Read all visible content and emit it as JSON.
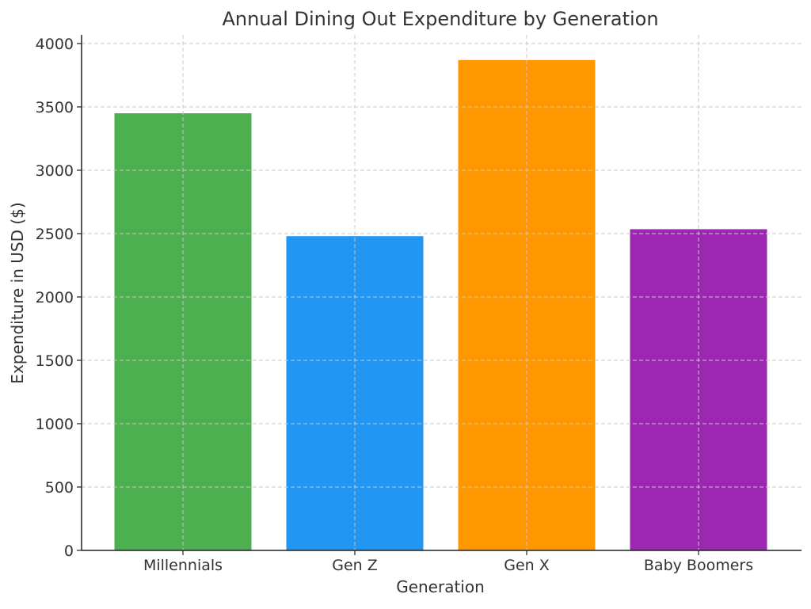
{
  "chart_data": {
    "type": "bar",
    "title": "Annual Dining Out Expenditure by Generation",
    "xlabel": "Generation",
    "ylabel": "Expenditure in USD ($)",
    "categories": [
      "Millennials",
      "Gen Z",
      "Gen X",
      "Baby Boomers"
    ],
    "values": [
      3450,
      2480,
      3870,
      2535
    ],
    "colors": [
      "#4caf50",
      "#2196f3",
      "#ff9800",
      "#9c27b0"
    ],
    "ylim": [
      0,
      4000
    ],
    "yticks": [
      0,
      500,
      1000,
      1500,
      2000,
      2500,
      3000,
      3500,
      4000
    ],
    "grid": true
  }
}
